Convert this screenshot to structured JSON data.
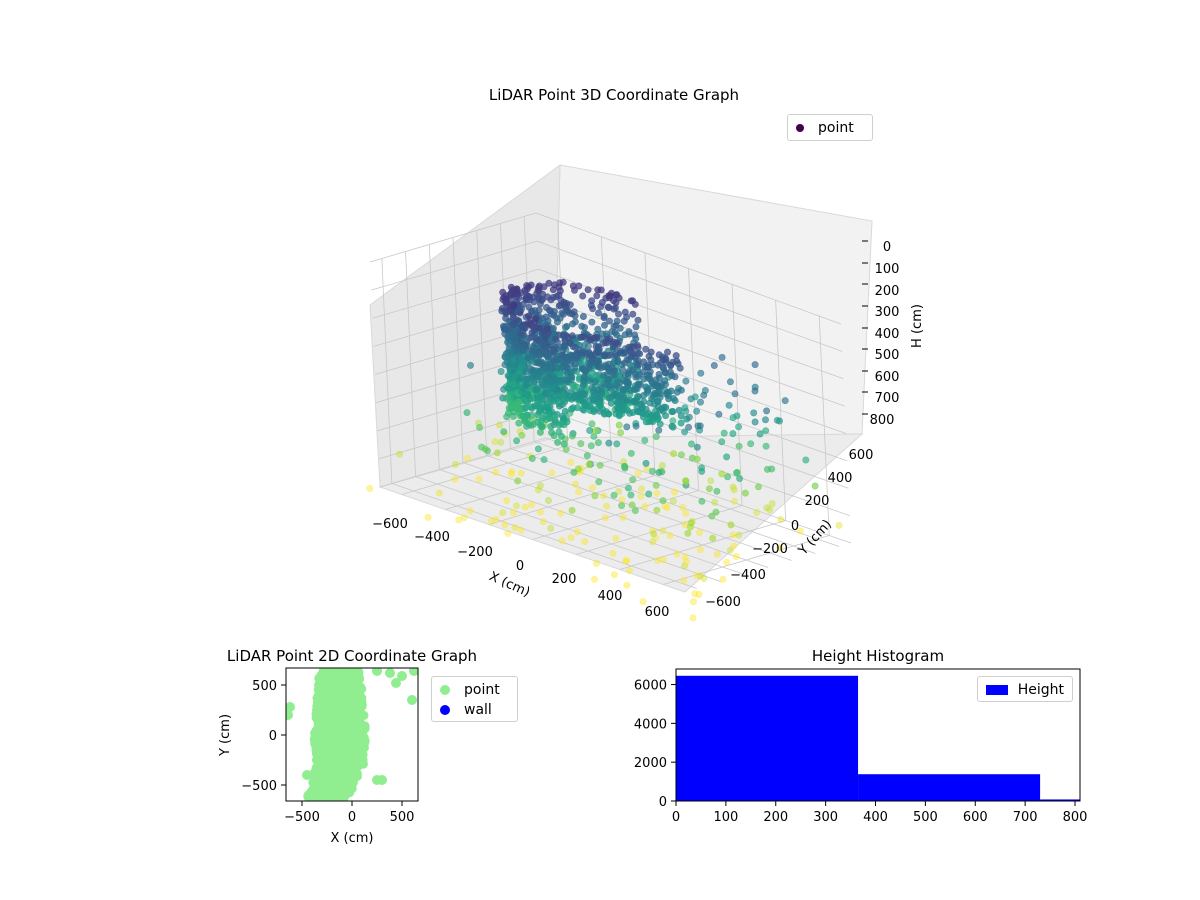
{
  "chart_data": [
    {
      "type": "scatter",
      "projection": "3d",
      "title": "LiDAR Point 3D Coordinate Graph",
      "xlabel": "X (cm)",
      "ylabel": "Y (cm)",
      "zlabel": "H (cm)",
      "x_ticks": [
        "−600",
        "−400",
        "−200",
        "0",
        "200",
        "400",
        "600"
      ],
      "y_ticks": [
        "−600",
        "−400",
        "−200",
        "0",
        "200",
        "400",
        "600"
      ],
      "z_ticks": [
        "0",
        "100",
        "200",
        "300",
        "400",
        "500",
        "600",
        "700",
        "800"
      ],
      "xlim": [
        -700,
        700
      ],
      "ylim": [
        -700,
        700
      ],
      "zlim": [
        800,
        0
      ],
      "legend": {
        "entries": [
          "point"
        ],
        "placement": "top-right"
      },
      "colormap": "viridis",
      "series": [
        {
          "name": "point",
          "color_high": "#440154",
          "color_low": "#fde725"
        }
      ]
    },
    {
      "type": "scatter",
      "title": "LiDAR Point 2D Coordinate Graph",
      "xlabel": "X (cm)",
      "ylabel": "Y (cm)",
      "x_ticks": [
        "−500",
        "0",
        "500"
      ],
      "y_ticks": [
        "500",
        "0",
        "−500"
      ],
      "xlim": [
        -650,
        650
      ],
      "ylim": [
        -650,
        650
      ],
      "legend": {
        "entries": [
          "point",
          "wall"
        ],
        "placement": "outside-right"
      },
      "series": [
        {
          "name": "point",
          "color": "#90ee90"
        },
        {
          "name": "wall",
          "color": "#0000ff"
        }
      ]
    },
    {
      "type": "bar",
      "title": "Height Histogram",
      "legend": {
        "entries": [
          "Height"
        ],
        "placement": "top-right"
      },
      "x_ticks": [
        "0",
        "100",
        "200",
        "300",
        "400",
        "500",
        "600",
        "700",
        "800"
      ],
      "y_ticks": [
        "0",
        "2000",
        "4000",
        "6000"
      ],
      "xlim": [
        0,
        810
      ],
      "ylim": [
        0,
        6800
      ],
      "bins": [
        {
          "x0": 0,
          "x1": 365,
          "count": 6450
        },
        {
          "x0": 365,
          "x1": 730,
          "count": 1380
        },
        {
          "x0": 730,
          "x1": 810,
          "count": 80
        }
      ],
      "color": "#0000ff"
    }
  ]
}
